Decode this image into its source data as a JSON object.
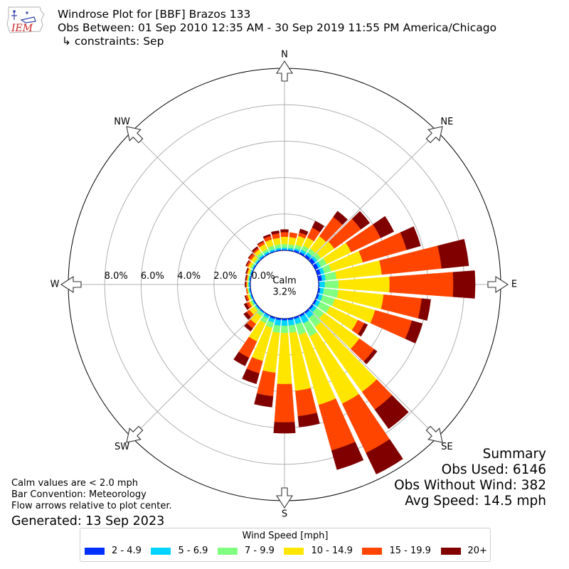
{
  "header": {
    "title": "Windrose Plot for [BBF] Brazos 133",
    "obs_between": "Obs Between: 01 Sep 2010 12:35 AM - 30 Sep 2019 11:55 PM America/Chicago",
    "constraints": "↳ constraints: Sep"
  },
  "logo": {
    "text": "IEM",
    "color": "#cc2222"
  },
  "summary": {
    "heading": "Summary",
    "obs_used": "Obs Used: 6146",
    "obs_without_wind": "Obs Without Wind: 382",
    "avg_speed": "Avg Speed: 14.5 mph"
  },
  "notes": {
    "calm": "Calm values are < 2.0 mph",
    "bar_convention": "Bar Convention: Meteorology",
    "flow_arrows": "Flow arrows relative to plot center.",
    "generated": "Generated: 13 Sep 2023"
  },
  "chart_data": {
    "type": "windrose",
    "calm": {
      "label": "Calm",
      "value": "3.2%"
    },
    "compass_labels": [
      "N",
      "NE",
      "E",
      "SE",
      "S",
      "SW",
      "W",
      "NW"
    ],
    "radial_ticks": [
      0,
      2,
      4,
      6,
      8
    ],
    "radial_tick_labels": [
      "0.0%",
      "2.0%",
      "4.0%",
      "6.0%",
      "8.0%"
    ],
    "rmax": 10,
    "grid": true,
    "legend": {
      "title": "Wind Speed [mph]",
      "placement": "bottom-center",
      "bins": [
        "2 - 4.9",
        "5 - 6.9",
        "7 - 9.9",
        "10 - 14.9",
        "15 - 19.9",
        "20+"
      ],
      "colors": [
        "#0030ff",
        "#00d4ff",
        "#80ff80",
        "#ffe600",
        "#ff4500",
        "#800000"
      ]
    },
    "directions_deg": [
      0,
      10,
      20,
      30,
      40,
      50,
      60,
      70,
      80,
      90,
      100,
      110,
      120,
      130,
      140,
      150,
      160,
      170,
      180,
      190,
      200,
      210,
      220,
      230,
      240,
      250,
      260,
      270,
      280,
      290,
      300,
      310,
      320,
      330,
      340,
      350
    ],
    "cumulative_pct": [
      [
        0.05,
        0.15,
        0.35,
        0.75,
        1.0,
        1.15
      ],
      [
        0.05,
        0.15,
        0.35,
        0.75,
        1.0,
        1.0
      ],
      [
        0.1,
        0.2,
        0.4,
        0.9,
        1.1,
        1.3
      ],
      [
        0.1,
        0.25,
        0.5,
        1.0,
        1.6,
        2.0
      ],
      [
        0.15,
        0.3,
        0.55,
        1.4,
        2.7,
        3.1
      ],
      [
        0.2,
        0.35,
        0.6,
        1.5,
        3.3,
        3.9
      ],
      [
        0.2,
        0.35,
        0.7,
        2.2,
        4.0,
        4.8
      ],
      [
        0.2,
        0.4,
        0.8,
        2.6,
        5.1,
        5.9
      ],
      [
        0.2,
        0.4,
        1.0,
        3.5,
        6.8,
        8.3
      ],
      [
        0.05,
        0.35,
        1.1,
        3.9,
        7.4,
        8.6
      ],
      [
        0.1,
        0.3,
        1.1,
        3.6,
        5.7,
        6.2
      ],
      [
        0.1,
        0.3,
        1.0,
        3.3,
        5.4,
        6.0
      ],
      [
        0.1,
        0.3,
        0.9,
        2.6,
        3.0,
        3.2
      ],
      [
        0.1,
        0.3,
        0.8,
        3.2,
        4.2,
        4.4
      ],
      [
        0.1,
        0.4,
        1.0,
        5.4,
        6.6,
        7.9
      ],
      [
        0.1,
        0.5,
        1.3,
        5.4,
        8.4,
        9.7
      ],
      [
        0.1,
        0.4,
        1.0,
        5.0,
        7.6,
        8.7
      ],
      [
        0.1,
        0.4,
        0.8,
        4.0,
        5.4,
        6.0
      ],
      [
        0.1,
        0.4,
        0.8,
        3.6,
        5.7,
        6.3
      ],
      [
        0.1,
        0.4,
        0.8,
        3.0,
        4.3,
        4.9
      ],
      [
        0.1,
        0.3,
        0.6,
        2.5,
        3.2,
        3.8
      ],
      [
        0.05,
        0.2,
        0.5,
        1.6,
        2.6,
        3.1
      ],
      [
        0.05,
        0.1,
        0.3,
        0.8,
        1.1,
        1.3
      ],
      [
        0.05,
        0.1,
        0.2,
        0.5,
        0.7,
        0.9
      ],
      [
        0.05,
        0.1,
        0.2,
        0.3,
        0.45,
        0.6
      ],
      [
        0.05,
        0.1,
        0.15,
        0.25,
        0.35,
        0.4
      ],
      [
        0.05,
        0.1,
        0.15,
        0.2,
        0.25,
        0.25
      ],
      [
        0.05,
        0.1,
        0.15,
        0.2,
        0.25,
        0.3
      ],
      [
        0.05,
        0.1,
        0.15,
        0.2,
        0.25,
        0.3
      ],
      [
        0.05,
        0.1,
        0.15,
        0.25,
        0.3,
        0.35
      ],
      [
        0.05,
        0.1,
        0.2,
        0.35,
        0.45,
        0.5
      ],
      [
        0.05,
        0.1,
        0.2,
        0.4,
        0.55,
        0.6
      ],
      [
        0.05,
        0.15,
        0.3,
        0.5,
        0.6,
        0.7
      ],
      [
        0.05,
        0.15,
        0.3,
        0.6,
        0.75,
        0.8
      ],
      [
        0.05,
        0.15,
        0.35,
        0.7,
        0.9,
        1.0
      ],
      [
        0.05,
        0.15,
        0.35,
        0.7,
        0.95,
        1.1
      ]
    ]
  }
}
